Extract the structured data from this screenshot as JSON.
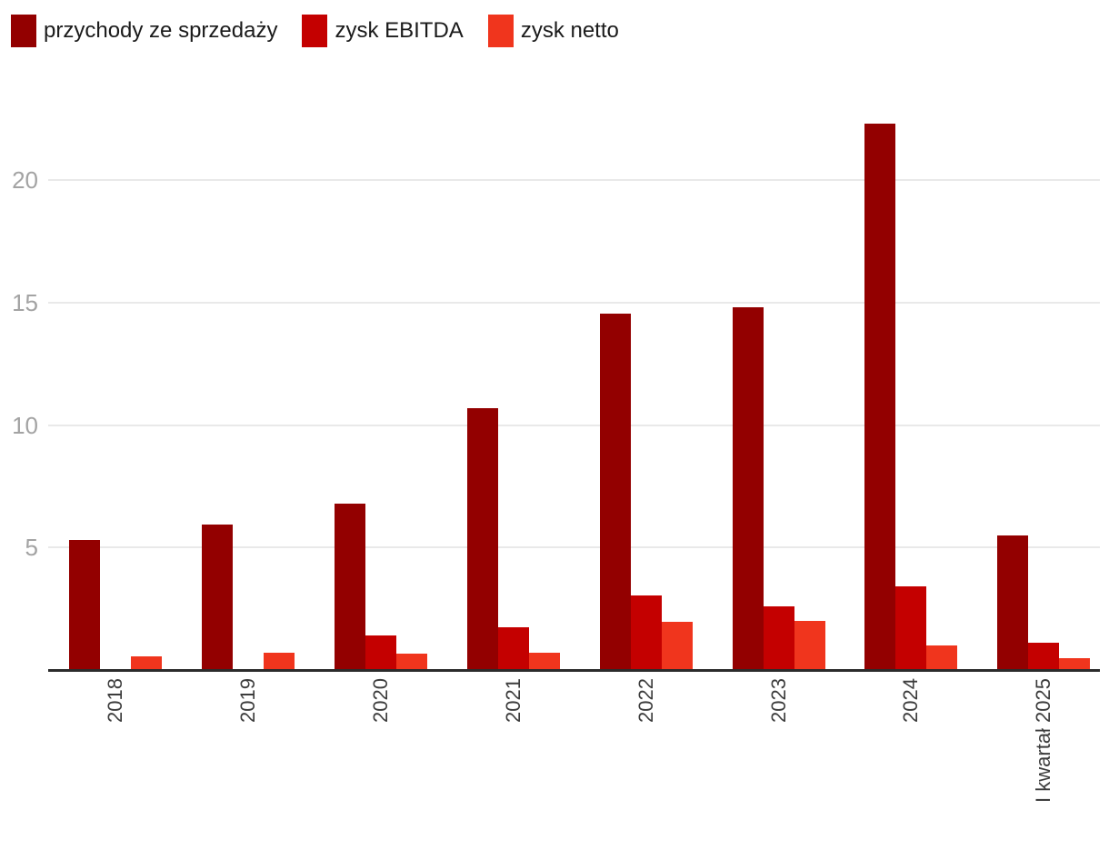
{
  "chart_data": {
    "type": "bar",
    "title": "",
    "xlabel": "",
    "ylabel": "",
    "categories": [
      "2018",
      "2019",
      "2020",
      "2021",
      "2022",
      "2023",
      "2024",
      "I kwartał 2025"
    ],
    "series": [
      {
        "name": "przychody ze sprzedaży",
        "color": "#930000",
        "values": [
          5.3,
          5.95,
          6.8,
          10.7,
          14.55,
          14.8,
          22.3,
          5.5
        ]
      },
      {
        "name": "zysk EBITDA",
        "color": "#c40000",
        "values": [
          null,
          null,
          1.4,
          1.75,
          3.05,
          2.6,
          3.4,
          1.1
        ]
      },
      {
        "name": "zysk netto",
        "color": "#f0351d",
        "values": [
          0.55,
          0.7,
          0.65,
          0.7,
          1.95,
          2.0,
          1.0,
          0.5
        ]
      }
    ],
    "yticks": [
      5,
      10,
      15,
      20
    ],
    "ylim": [
      0,
      23.6
    ],
    "grid": true,
    "legend_position": "top-left",
    "colors": {
      "background": "#ffffff",
      "gridline": "#e9e9e9",
      "axis_line": "#2b2b2b",
      "ytick_text": "#a3a3a3",
      "xtick_text": "#3c3c3c",
      "legend_text": "#1b1b1b"
    }
  }
}
